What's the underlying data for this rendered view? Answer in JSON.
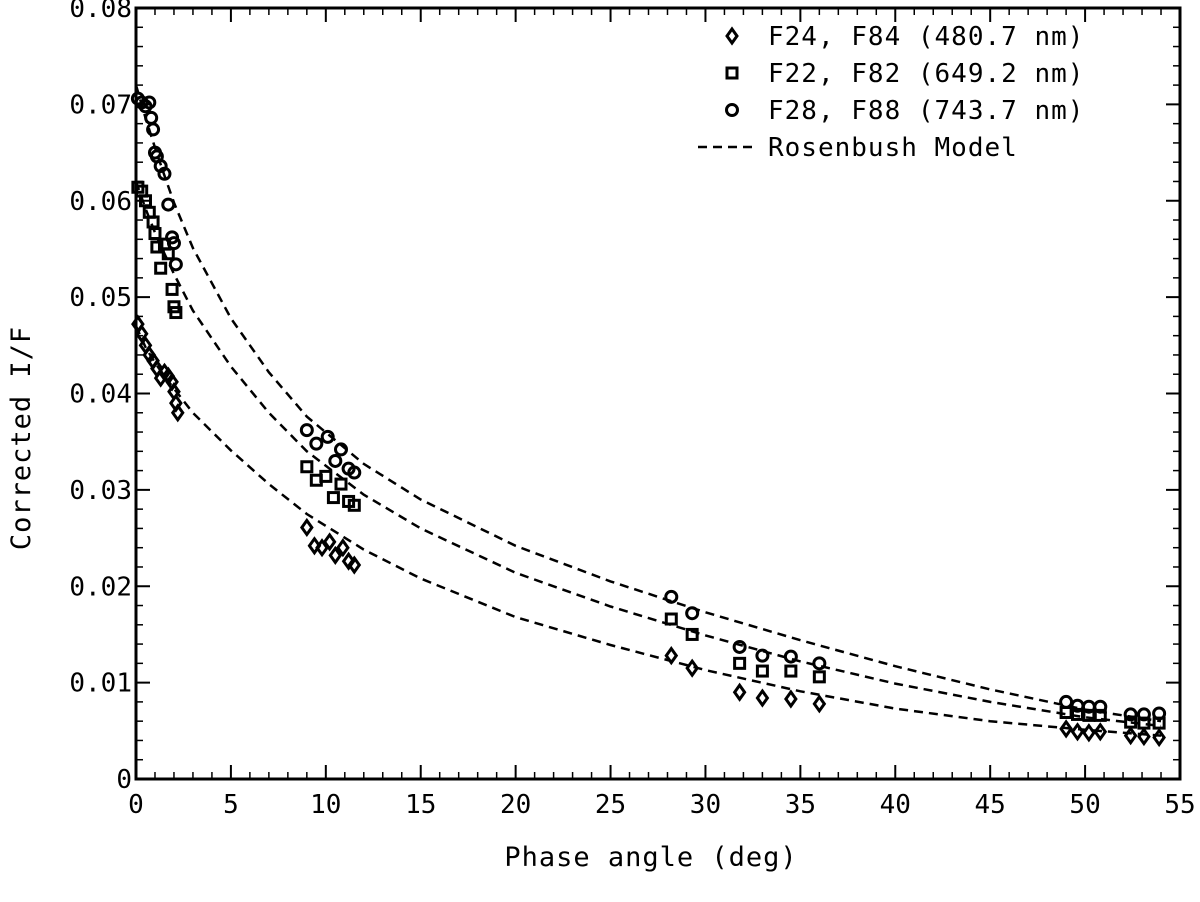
{
  "chart_data": {
    "type": "scatter",
    "xlabel": "Phase angle (deg)",
    "ylabel": "Corrected I/F",
    "xlim": [
      0,
      55
    ],
    "ylim": [
      0,
      0.08
    ],
    "xticks": [
      0,
      5,
      10,
      15,
      20,
      25,
      30,
      35,
      40,
      45,
      50,
      55
    ],
    "xtick_labels": [
      "0",
      "5",
      "10",
      "15",
      "20",
      "25",
      "30",
      "35",
      "40",
      "45",
      "50",
      "55"
    ],
    "yticks": [
      0,
      0.01,
      0.02,
      0.03,
      0.04,
      0.05,
      0.06,
      0.07,
      0.08
    ],
    "ytick_labels": [
      "0",
      "0.01",
      "0.02",
      "0.03",
      "0.04",
      "0.05",
      "0.06",
      "0.07",
      "0.08"
    ],
    "grid": false,
    "legend_position": "top-right",
    "series": [
      {
        "name": "F24, F84 (480.7 nm)",
        "marker": "diamond",
        "x": [
          0.1,
          0.3,
          0.5,
          0.7,
          0.9,
          1.1,
          1.3,
          1.5,
          1.7,
          1.9,
          2.0,
          2.1,
          2.2,
          9.0,
          9.4,
          9.8,
          10.2,
          10.5,
          10.9,
          11.2,
          11.5,
          28.2,
          29.3,
          31.8,
          33.0,
          34.5,
          36.0,
          49.0,
          49.6,
          50.2,
          50.8,
          52.4,
          53.1,
          53.9
        ],
        "y": [
          0.0472,
          0.0462,
          0.045,
          0.044,
          0.0434,
          0.0426,
          0.0416,
          0.0422,
          0.0418,
          0.0412,
          0.0402,
          0.039,
          0.038,
          0.0261,
          0.0242,
          0.024,
          0.0246,
          0.0232,
          0.024,
          0.0226,
          0.0222,
          0.0128,
          0.0115,
          0.009,
          0.0084,
          0.0083,
          0.0078,
          0.0052,
          0.0049,
          0.0048,
          0.0049,
          0.0045,
          0.0044,
          0.0043
        ]
      },
      {
        "name": "F22, F82 (649.2 nm)",
        "marker": "square",
        "x": [
          0.1,
          0.3,
          0.5,
          0.7,
          0.9,
          1.0,
          1.1,
          1.3,
          1.5,
          1.7,
          1.9,
          2.0,
          2.1,
          9.0,
          9.5,
          10.0,
          10.4,
          10.8,
          11.2,
          11.5,
          28.2,
          29.3,
          31.8,
          33.0,
          34.5,
          36.0,
          49.0,
          49.6,
          50.2,
          50.8,
          52.4,
          53.1,
          53.9
        ],
        "y": [
          0.0614,
          0.061,
          0.06,
          0.0588,
          0.0578,
          0.0566,
          0.0552,
          0.053,
          0.0555,
          0.0545,
          0.0508,
          0.049,
          0.0484,
          0.0324,
          0.031,
          0.0314,
          0.0292,
          0.0306,
          0.0288,
          0.0284,
          0.0166,
          0.015,
          0.012,
          0.0112,
          0.0112,
          0.0106,
          0.0069,
          0.0067,
          0.0066,
          0.0066,
          0.0059,
          0.0058,
          0.0058
        ]
      },
      {
        "name": "F28, F88 (743.7 nm)",
        "marker": "circle",
        "x": [
          0.1,
          0.3,
          0.5,
          0.7,
          0.8,
          0.9,
          1.0,
          1.1,
          1.3,
          1.5,
          1.7,
          1.9,
          2.0,
          2.1,
          9.0,
          9.5,
          10.1,
          10.5,
          10.8,
          11.2,
          11.5,
          28.2,
          29.3,
          31.8,
          33.0,
          34.5,
          36.0,
          49.0,
          49.6,
          50.2,
          50.8,
          52.4,
          53.1,
          53.9
        ],
        "y": [
          0.0706,
          0.0702,
          0.0698,
          0.0702,
          0.0686,
          0.0674,
          0.065,
          0.0646,
          0.0636,
          0.0628,
          0.0596,
          0.0562,
          0.0556,
          0.0534,
          0.0362,
          0.0348,
          0.0355,
          0.033,
          0.0342,
          0.0322,
          0.0318,
          0.0189,
          0.0172,
          0.0137,
          0.0128,
          0.0127,
          0.012,
          0.008,
          0.0076,
          0.0075,
          0.0075,
          0.0067,
          0.0067,
          0.0068
        ]
      },
      {
        "name": "Rosenbush Model",
        "marker": "dashed-line",
        "curves": [
          {
            "x": [
              0,
              0.5,
              1,
              1.5,
              2,
              3,
              5,
              7,
              9,
              12,
              15,
              20,
              25,
              30,
              35,
              40,
              45,
              50,
              54
            ],
            "y": [
              0.047,
              0.0448,
              0.0432,
              0.0418,
              0.0405,
              0.038,
              0.0341,
              0.0306,
              0.0275,
              0.0238,
              0.0208,
              0.0168,
              0.0139,
              0.0113,
              0.0091,
              0.0073,
              0.006,
              0.0051,
              0.0045
            ]
          },
          {
            "x": [
              0,
              0.5,
              1,
              1.5,
              2,
              3,
              5,
              7,
              9,
              12,
              15,
              20,
              25,
              30,
              35,
              40,
              45,
              50,
              54
            ],
            "y": [
              0.062,
              0.0592,
              0.0567,
              0.0545,
              0.0524,
              0.0486,
              0.0428,
              0.038,
              0.034,
              0.0295,
              0.026,
              0.0214,
              0.0179,
              0.0149,
              0.0122,
              0.0099,
              0.008,
              0.0064,
              0.0055
            ]
          },
          {
            "x": [
              0,
              0.5,
              1,
              1.5,
              2,
              3,
              5,
              7,
              9,
              12,
              15,
              20,
              25,
              30,
              35,
              40,
              45,
              50,
              54
            ],
            "y": [
              0.072,
              0.0686,
              0.0655,
              0.0626,
              0.0598,
              0.0551,
              0.0478,
              0.0422,
              0.0376,
              0.0327,
              0.029,
              0.0242,
              0.0205,
              0.0173,
              0.0144,
              0.0117,
              0.0093,
              0.0072,
              0.006
            ]
          }
        ]
      }
    ]
  }
}
